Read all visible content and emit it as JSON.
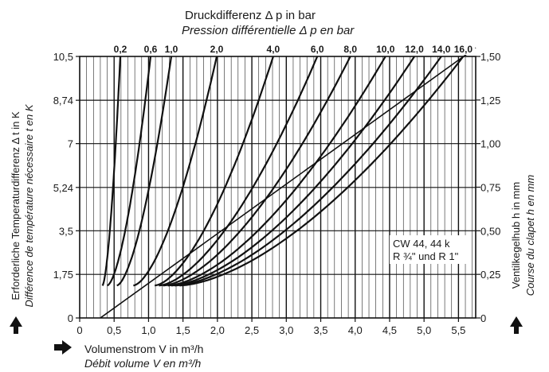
{
  "chart_data": {
    "type": "line",
    "top_title_de": "Druckdifferenz Δ p in bar",
    "top_title_fr": "Pression différentielle Δ p en bar",
    "xlabel_de": "Volumenstrom V in m³/h",
    "xlabel_fr": "Débit volume V en m³/h",
    "ylabel_left_de": "Erforderliche Temperaturdifferenz Δ t in K",
    "ylabel_left_fr": "Différence de température nécessaire t en K",
    "ylabel_right_de": "Ventilkegelhub h in mm",
    "ylabel_right_fr": "Course du clapet h en mm",
    "legend_line1": "CW 44, 44 k",
    "legend_line2": "R ¾\" und R 1\"",
    "xlim": [
      0,
      5.75
    ],
    "ylim_left": [
      0,
      10.5
    ],
    "ylim_right": [
      0,
      1.5
    ],
    "x_ticks": [
      "0",
      "0,5",
      "1,0",
      "1,5",
      "2,0",
      "2,5",
      "3,0",
      "3,5",
      "4,0",
      "4,5",
      "5,0",
      "5,5"
    ],
    "x_tick_values": [
      0,
      0.5,
      1.0,
      1.5,
      2.0,
      2.5,
      3.0,
      3.5,
      4.0,
      4.5,
      5.0,
      5.5
    ],
    "y_left_ticks": [
      "0",
      "1,75",
      "3,5",
      "5,24",
      "7",
      "8,74",
      "10,5"
    ],
    "y_left_values": [
      0,
      1.75,
      3.5,
      5.24,
      7,
      8.74,
      10.5
    ],
    "y_right_ticks": [
      "0",
      "0,25",
      "0,50",
      "0,75",
      "1,00",
      "1,25",
      "1,50"
    ],
    "y_right_values": [
      0,
      0.25,
      0.5,
      0.75,
      1.0,
      1.25,
      1.5
    ],
    "series": [
      {
        "name": "0,2",
        "x_start": 0.33,
        "x_end": 0.59
      },
      {
        "name": "0,6",
        "x_start": 0.4,
        "x_end": 1.03
      },
      {
        "name": "1,0",
        "x_start": 0.54,
        "x_end": 1.33
      },
      {
        "name": "2,0",
        "x_start": 0.78,
        "x_end": 1.99
      },
      {
        "name": "4,0",
        "x_start": 1.09,
        "x_end": 2.81
      },
      {
        "name": "6,0",
        "x_start": 1.15,
        "x_end": 3.45
      },
      {
        "name": "8,0",
        "x_start": 1.21,
        "x_end": 3.93
      },
      {
        "name": "10,0",
        "x_start": 1.28,
        "x_end": 4.44
      },
      {
        "name": "12,0",
        "x_start": 1.33,
        "x_end": 4.86
      },
      {
        "name": "14,0",
        "x_start": 1.38,
        "x_end": 5.25
      },
      {
        "name": "16,0",
        "x_start": 1.45,
        "x_end": 5.57
      }
    ],
    "lift_line": {
      "x": [
        0.3,
        5.75
      ],
      "y": [
        0,
        1.55
      ]
    },
    "grid": true
  }
}
